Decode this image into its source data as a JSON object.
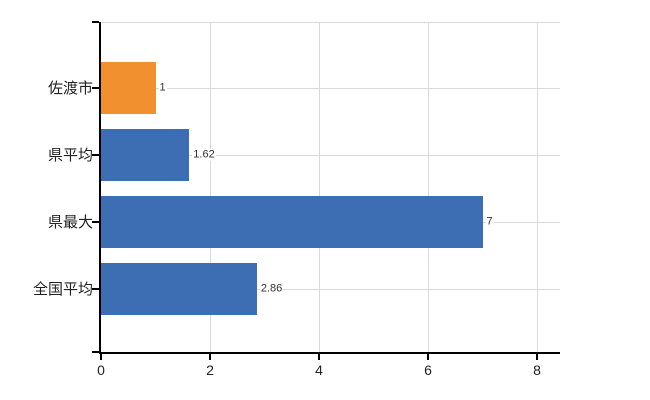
{
  "chart_data": {
    "type": "bar",
    "orientation": "horizontal",
    "title": "",
    "categories": [
      "佐渡市",
      "県平均",
      "県最大",
      "全国平均"
    ],
    "values": [
      1,
      1.62,
      7,
      2.86
    ],
    "value_labels": [
      "1",
      "1.62",
      "7",
      "2.86"
    ],
    "bar_colors": [
      "#f0902f",
      "#3d6db3",
      "#3d6db3",
      "#3d6db3"
    ],
    "x_ticks": [
      0,
      2,
      4,
      6,
      8
    ],
    "x_tick_labels": [
      "0",
      "2",
      "4",
      "6",
      "8"
    ],
    "xlim": [
      0,
      8.42
    ],
    "grid": true,
    "legend_position": "none",
    "colors": {
      "background": "#ffffff",
      "grid": "#d9d9d9",
      "axis": "#000000",
      "category_label": "#222222",
      "value_label": "#333333",
      "tick_label": "#222222"
    }
  }
}
